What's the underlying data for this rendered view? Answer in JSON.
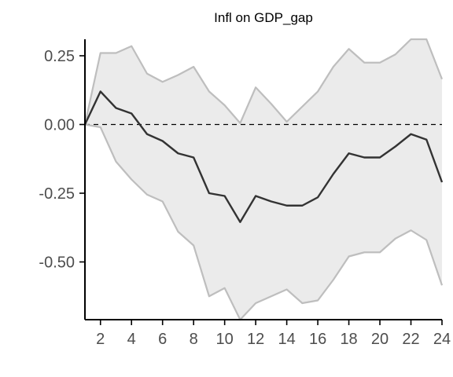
{
  "chart_data": {
    "type": "line",
    "title": "Infl on GDP_gap",
    "xlabel": "",
    "ylabel": "",
    "xlim": [
      1,
      24
    ],
    "ylim": [
      -0.71,
      0.31
    ],
    "x_ticks": [
      2,
      4,
      6,
      8,
      10,
      12,
      14,
      16,
      18,
      20,
      22,
      24
    ],
    "y_ticks": [
      0.25,
      0.0,
      -0.25,
      -0.5
    ],
    "x_tick_labels": [
      "2",
      "4",
      "6",
      "8",
      "10",
      "12",
      "14",
      "16",
      "18",
      "20",
      "22",
      "24"
    ],
    "y_tick_labels": [
      "0.25",
      "0.00",
      "-0.25",
      "-0.50"
    ],
    "zero_line": true,
    "grid": false,
    "legend": "none",
    "x": [
      1,
      2,
      3,
      4,
      5,
      6,
      7,
      8,
      9,
      10,
      11,
      12,
      13,
      14,
      15,
      16,
      17,
      18,
      19,
      20,
      21,
      22,
      23,
      24
    ],
    "series": [
      {
        "role": "response",
        "color": "#333333",
        "values": [
          0.0,
          0.12,
          0.06,
          0.04,
          -0.035,
          -0.06,
          -0.105,
          -0.12,
          -0.25,
          -0.26,
          -0.355,
          -0.26,
          -0.28,
          -0.295,
          -0.295,
          -0.265,
          -0.18,
          -0.105,
          -0.12,
          -0.12,
          -0.08,
          -0.035,
          -0.055,
          -0.21
        ]
      },
      {
        "role": "upper",
        "color": "#bebebe",
        "values": [
          0.0,
          0.26,
          0.26,
          0.285,
          0.185,
          0.155,
          0.18,
          0.21,
          0.12,
          0.07,
          0.005,
          0.135,
          0.075,
          0.01,
          0.065,
          0.12,
          0.21,
          0.275,
          0.225,
          0.225,
          0.255,
          0.315,
          0.315,
          0.165
        ]
      },
      {
        "role": "lower",
        "color": "#bebebe",
        "values": [
          0.0,
          -0.01,
          -0.135,
          -0.2,
          -0.255,
          -0.28,
          -0.39,
          -0.44,
          -0.625,
          -0.595,
          -0.71,
          -0.65,
          -0.625,
          -0.6,
          -0.65,
          -0.64,
          -0.565,
          -0.48,
          -0.465,
          -0.465,
          -0.415,
          -0.385,
          -0.42,
          -0.585
        ]
      }
    ],
    "band_fill": "#ebebeb",
    "axis_color": "#000000"
  }
}
